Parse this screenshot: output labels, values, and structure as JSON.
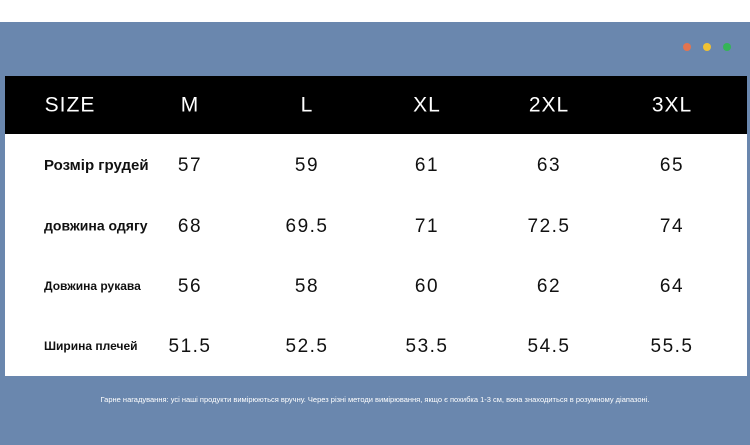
{
  "table": {
    "header": [
      "SIZE",
      "M",
      "L",
      "XL",
      "2XL",
      "3XL"
    ],
    "rows": [
      [
        "Розмір грудей",
        57,
        59,
        61,
        63,
        65
      ],
      [
        "довжина одягу",
        68,
        69.5,
        71,
        72.5,
        74
      ],
      [
        "Довжина рукава",
        56,
        58,
        60,
        62,
        64
      ],
      [
        "Ширина плечей",
        51.5,
        52.5,
        53.5,
        54.5,
        55.5
      ]
    ]
  },
  "note": "Гарне нагадування: усі наші продукти вимірюються вручну. Через різні методи вимірювання, якщо є похибка 1-3 см, вона знаходиться в розумному діапазоні."
}
